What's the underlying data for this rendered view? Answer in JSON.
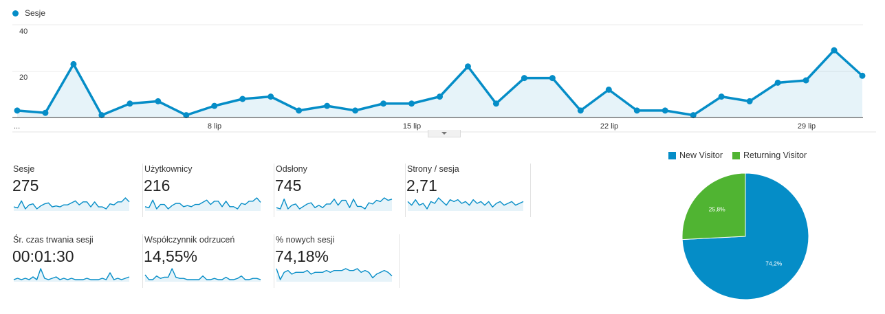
{
  "chart_data": {
    "type": "area",
    "series": [
      {
        "name": "Sesje",
        "color": "#058dc7",
        "values": [
          3,
          2,
          23,
          1,
          6,
          7,
          1,
          5,
          8,
          9,
          3,
          5,
          3,
          6,
          6,
          9,
          22,
          6,
          17,
          17,
          3,
          12,
          3,
          3,
          1,
          9,
          7,
          15,
          16,
          29,
          18
        ]
      }
    ],
    "yticks": [
      "40",
      "20"
    ],
    "ylim": [
      0,
      40
    ],
    "xtick_labels": [
      "...",
      "8 lip",
      "15 lip",
      "22 lip",
      "29 lip"
    ],
    "grid": true,
    "legend": "top-left"
  },
  "metrics": [
    {
      "label": "Sesje",
      "value": "275",
      "spark": [
        3,
        2,
        9,
        1,
        5,
        6,
        1,
        4,
        6,
        7,
        3,
        4,
        3,
        5,
        5,
        7,
        9,
        5,
        8,
        8,
        3,
        8,
        3,
        3,
        1,
        6,
        5,
        8,
        8,
        12,
        8
      ]
    },
    {
      "label": "Użytkownicy",
      "value": "216",
      "spark": [
        3,
        2,
        9,
        1,
        5,
        5,
        1,
        4,
        6,
        6,
        3,
        4,
        3,
        5,
        5,
        7,
        9,
        5,
        8,
        8,
        3,
        8,
        3,
        3,
        1,
        6,
        5,
        8,
        8,
        11,
        7
      ]
    },
    {
      "label": "Odsłony",
      "value": "745",
      "spark": [
        2,
        1,
        9,
        1,
        4,
        5,
        1,
        3,
        5,
        6,
        2,
        4,
        2,
        5,
        5,
        9,
        4,
        8,
        8,
        2,
        9,
        3,
        3,
        1,
        6,
        5,
        8,
        7,
        10,
        8,
        9
      ]
    },
    {
      "label": "Strony / sesja",
      "value": "2,71",
      "spark": [
        7,
        5,
        8,
        5,
        6,
        3,
        7,
        6,
        9,
        7,
        5,
        8,
        7,
        8,
        6,
        7,
        5,
        8,
        6,
        7,
        5,
        7,
        4,
        6,
        7,
        5,
        6,
        7,
        5,
        6,
        7
      ]
    },
    {
      "label": "Śr. czas trwania sesji",
      "value": "00:01:30",
      "spark": [
        1,
        2,
        1,
        2,
        1,
        3,
        1,
        9,
        2,
        1,
        2,
        3,
        1,
        2,
        1,
        2,
        1,
        1,
        1,
        2,
        1,
        1,
        1,
        2,
        1,
        6,
        1,
        2,
        1,
        2,
        3
      ]
    },
    {
      "label": "Współczynnik odrzuceń",
      "value": "14,55%",
      "spark": [
        5,
        1,
        1,
        4,
        2,
        3,
        3,
        10,
        3,
        2,
        2,
        1,
        1,
        1,
        1,
        4,
        1,
        1,
        2,
        1,
        1,
        3,
        1,
        1,
        2,
        4,
        1,
        1,
        2,
        2,
        1
      ]
    },
    {
      "label": "% nowych sesji",
      "value": "74,18%",
      "spark": [
        10,
        4,
        8,
        9,
        7,
        8,
        8,
        8,
        9,
        7,
        8,
        8,
        8,
        9,
        8,
        9,
        9,
        9,
        10,
        9,
        9,
        10,
        8,
        9,
        8,
        5,
        7,
        8,
        9,
        8,
        6
      ]
    }
  ],
  "pie": {
    "legend": [
      {
        "label": "New Visitor",
        "color": "#058dc7"
      },
      {
        "label": "Returning Visitor",
        "color": "#50b432"
      }
    ],
    "slices": [
      {
        "label": "74,2%",
        "value": 74.2,
        "color": "#058dc7"
      },
      {
        "label": "25,8%",
        "value": 25.8,
        "color": "#50b432"
      }
    ]
  }
}
